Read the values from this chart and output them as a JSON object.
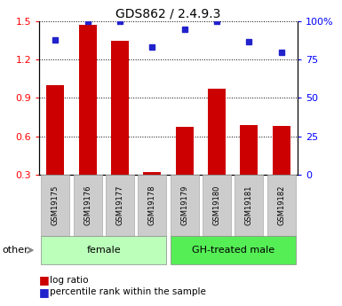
{
  "title": "GDS862 / 2.4.9.3",
  "samples": [
    "GSM19175",
    "GSM19176",
    "GSM19177",
    "GSM19178",
    "GSM19179",
    "GSM19180",
    "GSM19181",
    "GSM19182"
  ],
  "log_ratio": [
    1.0,
    1.47,
    1.35,
    0.32,
    0.67,
    0.97,
    0.69,
    0.68
  ],
  "percentile": [
    88,
    100,
    100,
    83,
    95,
    100,
    87,
    80
  ],
  "bar_color": "#cc0000",
  "dot_color": "#2222cc",
  "bar_bottom": 0.3,
  "ylim_left": [
    0.3,
    1.5
  ],
  "ylim_right": [
    0,
    100
  ],
  "yticks_left": [
    0.3,
    0.6,
    0.9,
    1.2,
    1.5
  ],
  "yticks_right": [
    0,
    25,
    50,
    75,
    100
  ],
  "groups": [
    {
      "label": "female",
      "indices": [
        0,
        1,
        2,
        3
      ],
      "color": "#bbffbb"
    },
    {
      "label": "GH-treated male",
      "indices": [
        4,
        5,
        6,
        7
      ],
      "color": "#55ee55"
    }
  ],
  "other_label": "other",
  "legend_bar_label": "log ratio",
  "legend_dot_label": "percentile rank within the sample"
}
